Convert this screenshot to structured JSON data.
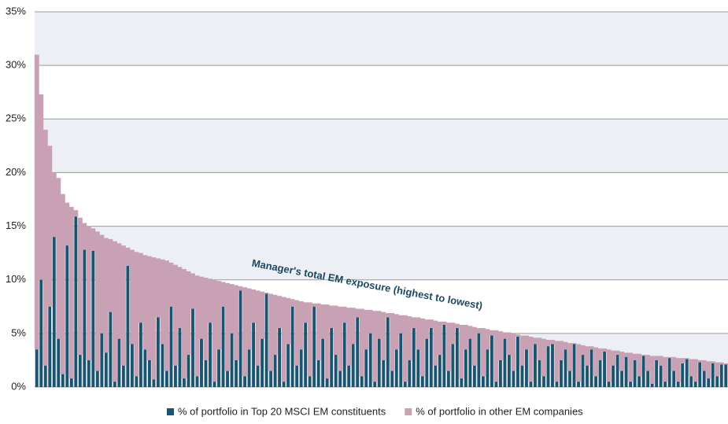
{
  "chart_data": {
    "type": "stacked-bar",
    "annotation": "Manager's total EM exposure (highest to lowest)",
    "categories": [
      null,
      null,
      null,
      null,
      null,
      null,
      null,
      null,
      null,
      null,
      null,
      null,
      null,
      null,
      null,
      null,
      null,
      null,
      null,
      null,
      null,
      null,
      null,
      null,
      null,
      null,
      null,
      null,
      null,
      null,
      null,
      null,
      null,
      null,
      null,
      null,
      null,
      null,
      null,
      null,
      null,
      null,
      null,
      null,
      null,
      null,
      null,
      null,
      null,
      null,
      null,
      null,
      null,
      null,
      null,
      null,
      null,
      null,
      null,
      null,
      null,
      null,
      null,
      null,
      null,
      null,
      null,
      null,
      null,
      null,
      null,
      null,
      null,
      null,
      null,
      null,
      null,
      null,
      null,
      null,
      null,
      null,
      null,
      null,
      null,
      null,
      null,
      null,
      null,
      null,
      null,
      null,
      null,
      null,
      null,
      null,
      null,
      null,
      null,
      null,
      null,
      null,
      null,
      null,
      null,
      null,
      null,
      null,
      null,
      null,
      null,
      null,
      null,
      null,
      null,
      null,
      null,
      null,
      null,
      null,
      null,
      null,
      null,
      null,
      null,
      null,
      null,
      null,
      null,
      null,
      null,
      null,
      null,
      null,
      null,
      null,
      null,
      null,
      null,
      null,
      null,
      null,
      null,
      null,
      null,
      null,
      null,
      null,
      null,
      null,
      null,
      null,
      null,
      null,
      null,
      null,
      null,
      null,
      null,
      null
    ],
    "series": [
      {
        "name": "% of portfolio in Top 20 MSCI EM constituents",
        "color": "#1b5470",
        "values": [
          3.5,
          10.0,
          2.0,
          7.5,
          14.0,
          4.5,
          1.2,
          13.2,
          0.8,
          15.9,
          3.0,
          12.8,
          2.5,
          12.7,
          1.5,
          5.0,
          3.2,
          7.0,
          0.5,
          4.5,
          2.0,
          11.3,
          4.0,
          1.0,
          6.0,
          3.5,
          2.5,
          0.7,
          6.5,
          4.0,
          1.5,
          7.5,
          2.0,
          5.5,
          0.8,
          3.0,
          7.3,
          1.0,
          4.5,
          2.5,
          6.0,
          0.5,
          3.5,
          7.5,
          1.5,
          5.0,
          2.5,
          9.0,
          1.0,
          3.5,
          6.0,
          2.0,
          4.5,
          8.7,
          1.5,
          3.0,
          5.5,
          0.5,
          4.0,
          7.5,
          2.0,
          3.5,
          6.0,
          1.0,
          7.5,
          2.5,
          4.5,
          0.8,
          5.5,
          3.0,
          1.5,
          6.0,
          2.0,
          4.0,
          6.5,
          1.0,
          3.5,
          5.0,
          0.5,
          4.5,
          2.5,
          6.5,
          1.5,
          3.5,
          5.0,
          0.5,
          2.5,
          5.5,
          3.5,
          1.0,
          4.5,
          5.5,
          2.0,
          3.0,
          5.8,
          1.5,
          4.0,
          5.5,
          0.8,
          3.5,
          4.5,
          2.0,
          5.0,
          1.0,
          3.5,
          4.8,
          0.5,
          2.5,
          4.5,
          3.0,
          1.5,
          4.7,
          2.0,
          3.5,
          0.5,
          4.0,
          2.5,
          1.0,
          3.8,
          4.0,
          0.5,
          2.5,
          3.5,
          1.5,
          4.0,
          0.5,
          3.0,
          2.0,
          3.5,
          1.0,
          2.5,
          3.3,
          0.5,
          2.0,
          3.0,
          1.5,
          2.8,
          0.5,
          2.5,
          1.0,
          2.9,
          1.5,
          0.3,
          2.5,
          2.0,
          0.5,
          2.7,
          1.5,
          0.5,
          2.2,
          2.6,
          1.0,
          0.5,
          2.3,
          1.5,
          0.8,
          2.2,
          1.0,
          2.1,
          2.1
        ]
      },
      {
        "name": "% of portfolio in other EM companies",
        "color": "#c9a1b5",
        "values": [
          27.5,
          17.3,
          22.0,
          15.0,
          6.0,
          15.0,
          16.8,
          4.0,
          16.0,
          0.6,
          12.8,
          2.5,
          12.5,
          2.1,
          13.0,
          9.2,
          10.7,
          6.8,
          13.1,
          8.9,
          11.2,
          1.7,
          8.8,
          11.6,
          6.5,
          8.8,
          9.7,
          11.4,
          5.5,
          7.9,
          10.3,
          4.1,
          9.4,
          5.7,
          10.2,
          7.8,
          3.3,
          9.4,
          5.8,
          7.7,
          4.1,
          9.5,
          6.4,
          2.3,
          8.2,
          4.6,
          7.0,
          0.4,
          8.3,
          5.7,
          3.1,
          7.0,
          4.4,
          0.1,
          7.2,
          5.6,
          3.0,
          7.9,
          4.3,
          0.7,
          6.1,
          4.5,
          1.9,
          6.9,
          0.3,
          5.3,
          3.2,
          6.9,
          2.1,
          4.6,
          6.0,
          1.5,
          5.4,
          3.4,
          0.8,
          6.3,
          3.7,
          2.2,
          6.6,
          2.6,
          4.5,
          0.4,
          5.4,
          3.3,
          1.7,
          6.2,
          4.1,
          1.0,
          3.0,
          5.4,
          1.8,
          0.8,
          4.2,
          3.1,
          0.3,
          4.5,
          2.0,
          0.4,
          5.0,
          2.3,
          1.2,
          3.6,
          0.5,
          4.5,
          1.9,
          0.5,
          4.8,
          2.7,
          0.6,
          2.1,
          3.5,
          0.2,
          2.8,
          1.3,
          4.2,
          0.6,
          2.1,
          3.5,
          0.6,
          0.4,
          3.8,
          1.8,
          0.7,
          2.6,
          0.1,
          3.5,
          0.9,
          1.8,
          0.3,
          2.7,
          1.1,
          0.3,
          3.0,
          1.4,
          0.4,
          1.8,
          0.4,
          2.7,
          0.6,
          2.1,
          0.1,
          1.5,
          2.6,
          0.4,
          0.9,
          2.3,
          0.1,
          1.3,
          2.2,
          0.5,
          0.1,
          1.6,
          2.1,
          0.2,
          1.0,
          1.6,
          0.2,
          1.3,
          0.2,
          0.1
        ]
      }
    ],
    "ylim": [
      0,
      35
    ],
    "yticks": [
      {
        "value": 0,
        "label": "0%"
      },
      {
        "value": 5,
        "label": "5%"
      },
      {
        "value": 10,
        "label": "10%"
      },
      {
        "value": 15,
        "label": "15%"
      },
      {
        "value": 20,
        "label": "20%"
      },
      {
        "value": 25,
        "label": "25%"
      },
      {
        "value": 30,
        "label": "30%"
      },
      {
        "value": 35,
        "label": "35%"
      }
    ],
    "grid": true,
    "legend": "bottom"
  }
}
